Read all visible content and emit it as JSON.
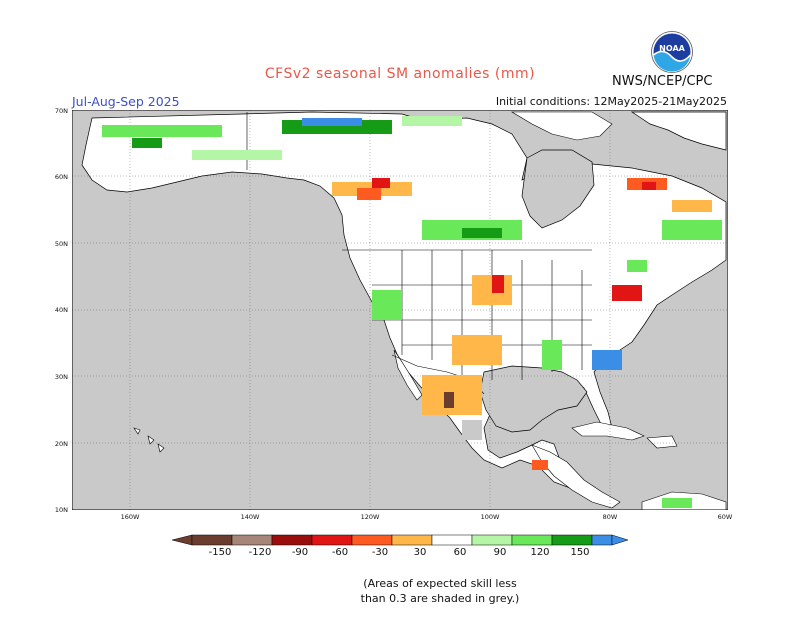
{
  "header": {
    "title": "CFSv2 seasonal SM anomalies (mm)",
    "org": "NWS/NCEP/CPC",
    "logo_text": "NOAA",
    "season": "Jul-Aug-Sep 2025",
    "initial_conditions": "Initial conditions: 12May2025-21May2025"
  },
  "map": {
    "region": "North America",
    "lat_labels": [
      "70N",
      "60N",
      "50N",
      "40N",
      "30N",
      "20N",
      "10N"
    ],
    "lon_labels": [
      "160W",
      "140W",
      "120W",
      "100W",
      "80W",
      "60W"
    ],
    "colors": {
      "ocean": "#c9c9c9",
      "land": "#ffffff",
      "border": "#000000",
      "skill_grey": "#c9c9c9"
    }
  },
  "legend": {
    "labels": [
      "-150",
      "-120",
      "-90",
      "-60",
      "-30",
      "30",
      "60",
      "90",
      "120",
      "150"
    ],
    "colors": [
      "#6b3d2e",
      "#a58678",
      "#9a0d0d",
      "#e21515",
      "#ff5a1f",
      "#ffb74a",
      "#ffffff",
      "#b5f5a6",
      "#69e85a",
      "#159b15",
      "#3a8ee6",
      "#3a8ee6"
    ],
    "note_line1": "(Areas of expected skill less",
    "note_line2": "than 0.3 are shaded in grey.)"
  }
}
